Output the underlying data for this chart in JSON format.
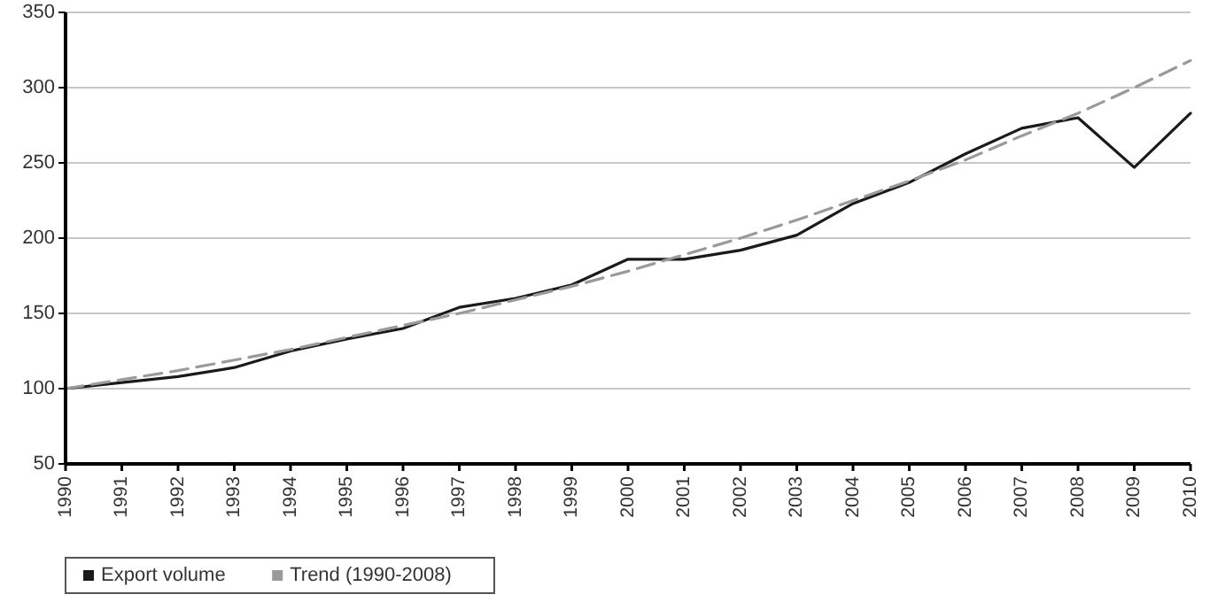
{
  "chart_data": {
    "type": "line",
    "categories": [
      "1990",
      "1991",
      "1992",
      "1993",
      "1994",
      "1995",
      "1996",
      "1997",
      "1998",
      "1999",
      "2000",
      "2001",
      "2002",
      "2003",
      "2004",
      "2005",
      "2006",
      "2007",
      "2008",
      "2009",
      "2010"
    ],
    "series": [
      {
        "name": "Export volume",
        "color": "#1a1a1a",
        "line_style": "solid",
        "values": [
          100,
          104,
          108,
          114,
          125,
          133,
          140,
          154,
          160,
          169,
          186,
          186,
          192,
          202,
          223,
          237,
          256,
          273,
          280,
          247,
          283
        ]
      },
      {
        "name": "Trend (1990-2008)",
        "color": "#9a9a9a",
        "line_style": "dashed",
        "values": [
          100,
          106,
          112,
          119,
          126,
          134,
          142,
          150,
          159,
          168,
          178,
          189,
          200,
          212,
          225,
          238,
          252,
          268,
          283,
          300,
          318
        ]
      }
    ],
    "ylim": [
      50,
      350
    ],
    "yticks": [
      50,
      100,
      150,
      200,
      250,
      300,
      350
    ],
    "grid": "y",
    "legend": "bottom",
    "marker": "none"
  }
}
